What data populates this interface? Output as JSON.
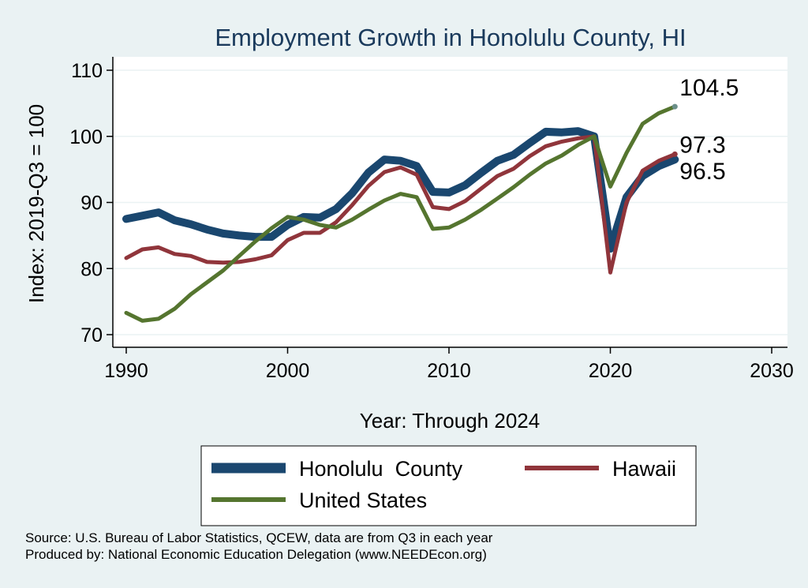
{
  "chart_data": {
    "type": "line",
    "title": "Employment Growth in Honolulu County, HI",
    "xlabel": "Year: Through 2024",
    "ylabel": "Index: 2019-Q3 = 100",
    "xlim": [
      1990,
      2030
    ],
    "ylim": [
      70,
      110
    ],
    "xticks": [
      1990,
      2000,
      2010,
      2020,
      2030
    ],
    "yticks": [
      70,
      80,
      90,
      100,
      110
    ],
    "x": [
      1990,
      1991,
      1992,
      1993,
      1994,
      1995,
      1996,
      1997,
      1998,
      1999,
      2000,
      2001,
      2002,
      2003,
      2004,
      2005,
      2006,
      2007,
      2008,
      2009,
      2010,
      2011,
      2012,
      2013,
      2014,
      2015,
      2016,
      2017,
      2018,
      2019,
      2020,
      2021,
      2022,
      2023,
      2024
    ],
    "series": [
      {
        "name": "Honolulu  County",
        "color": "#1a476f",
        "values": [
          87.5,
          88.0,
          88.5,
          87.3,
          86.7,
          85.9,
          85.3,
          85.0,
          84.8,
          84.8,
          86.6,
          87.8,
          87.7,
          89.0,
          91.4,
          94.5,
          96.5,
          96.3,
          95.5,
          91.6,
          91.5,
          92.6,
          94.5,
          96.3,
          97.2,
          99.0,
          100.7,
          100.6,
          100.8,
          100.0,
          83.0,
          90.8,
          94.0,
          95.5,
          96.5
        ],
        "end_label": "96.5"
      },
      {
        "name": "Hawaii",
        "color": "#90353b",
        "values": [
          81.6,
          82.9,
          83.2,
          82.2,
          81.9,
          81.0,
          80.9,
          81.0,
          81.4,
          82.0,
          84.3,
          85.4,
          85.4,
          87.0,
          89.6,
          92.5,
          94.6,
          95.3,
          94.2,
          89.3,
          89.0,
          90.2,
          92.1,
          94.0,
          95.1,
          97.0,
          98.5,
          99.2,
          99.7,
          100.0,
          79.4,
          90.0,
          94.8,
          96.3,
          97.3
        ],
        "end_label": "97.3"
      },
      {
        "name": "United States",
        "color": "#55752f",
        "values": [
          73.3,
          72.1,
          72.4,
          73.9,
          76.1,
          77.9,
          79.7,
          81.9,
          84.1,
          86.1,
          87.8,
          87.4,
          86.6,
          86.2,
          87.4,
          88.9,
          90.3,
          91.3,
          90.8,
          86.0,
          86.2,
          87.4,
          88.9,
          90.6,
          92.3,
          94.2,
          95.9,
          97.1,
          98.7,
          100.0,
          92.4,
          97.5,
          101.9,
          103.5,
          104.5
        ],
        "end_label": "104.5"
      }
    ],
    "legend_position": "bottom",
    "grid": true
  },
  "source_lines": [
    "Source: U.S. Bureau of Labor Statistics, QCEW, data are from Q3 in each year",
    "Produced by: National Economic Education Delegation (www.NEEDEcon.org)"
  ],
  "colors": {
    "background": "#eaf2f3",
    "plot_background": "#ffffff",
    "grid": "#eaf2f3",
    "title": "#1a3a5c"
  }
}
